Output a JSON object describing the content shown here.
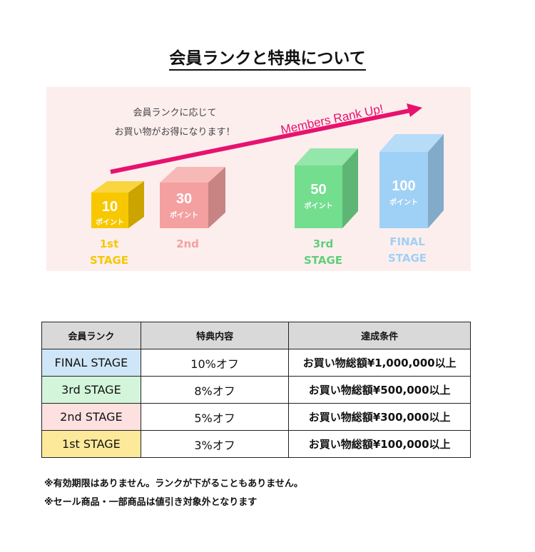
{
  "title": "会員ランクと特典について",
  "banner": {
    "intro_line1": "会員ランクに応じて",
    "intro_line2": "お買い物がお得になります！",
    "arrow_text": "Members Rank Up!",
    "arrow_color": "#e8126e",
    "stages": [
      {
        "points": "10",
        "unit": "ポイント",
        "label_line1": "1st",
        "label_line2": "STAGE",
        "color": "#f7c800"
      },
      {
        "points": "30",
        "unit": "ポイント",
        "label_line1": "2nd",
        "label_line2": "",
        "color": "#f4a0a0"
      },
      {
        "points": "50",
        "unit": "ポイント",
        "label_line1": "3rd",
        "label_line2": "STAGE",
        "color": "#72de8e"
      },
      {
        "points": "100",
        "unit": "ポイント",
        "label_line1": "FINAL",
        "label_line2": "STAGE",
        "color": "#9fd0f5"
      }
    ]
  },
  "table": {
    "headers": [
      "会員ランク",
      "特典内容",
      "達成条件"
    ],
    "rows": [
      {
        "rank": "FINAL STAGE",
        "benefit": "10%オフ",
        "condition": "お買い物総額¥1,000,000以上",
        "color": "#cfe6f8"
      },
      {
        "rank": "3rd STAGE",
        "benefit": "8%オフ",
        "condition": "お買い物総額¥500,000以上",
        "color": "#d3f5da"
      },
      {
        "rank": "2nd STAGE",
        "benefit": "5%オフ",
        "condition": "お買い物総額¥300,000以上",
        "color": "#fde0e0"
      },
      {
        "rank": "1st STAGE",
        "benefit": "3%オフ",
        "condition": "お買い物総額¥100,000以上",
        "color": "#fde99a"
      }
    ]
  },
  "notes": [
    "※有効期限はありません。ランクが下がることもありません。",
    "※セール商品・一部商品は値引き対象外となります"
  ]
}
